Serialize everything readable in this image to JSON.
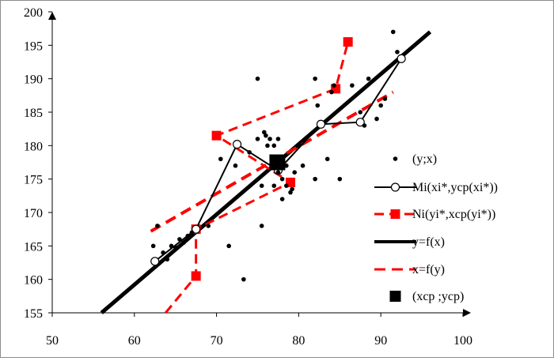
{
  "chart_data": {
    "type": "scatter",
    "xlim": [
      50,
      100
    ],
    "ylim": [
      155,
      200
    ],
    "x_ticks": [
      "50",
      "60",
      "70",
      "80",
      "90",
      "100"
    ],
    "y_ticks": [
      "155",
      "160",
      "165",
      "170",
      "175",
      "180",
      "185",
      "190",
      "195",
      "200"
    ],
    "grid": false,
    "legend_position": "right",
    "series": [
      {
        "name": "(y;x)",
        "kind": "scatter",
        "color": "#000000",
        "points": [
          [
            62.3,
            165
          ],
          [
            62.8,
            168
          ],
          [
            63.5,
            164
          ],
          [
            64,
            163
          ],
          [
            64.5,
            165
          ],
          [
            65,
            164.8
          ],
          [
            65.5,
            166
          ],
          [
            66,
            165.5
          ],
          [
            66.5,
            166.5
          ],
          [
            67,
            167
          ],
          [
            69,
            168
          ],
          [
            70.5,
            178
          ],
          [
            71.5,
            165
          ],
          [
            72.3,
            177
          ],
          [
            73.3,
            160
          ],
          [
            74,
            179
          ],
          [
            75,
            190
          ],
          [
            75,
            181
          ],
          [
            75.5,
            174
          ],
          [
            75.5,
            168
          ],
          [
            75.8,
            182
          ],
          [
            76,
            181.5
          ],
          [
            76.2,
            180
          ],
          [
            76.5,
            181
          ],
          [
            77,
            174
          ],
          [
            77,
            180
          ],
          [
            77.5,
            176
          ],
          [
            77.5,
            181
          ],
          [
            78,
            175
          ],
          [
            78,
            172
          ],
          [
            78.5,
            174
          ],
          [
            78.5,
            177
          ],
          [
            79,
            173
          ],
          [
            79.2,
            173.5
          ],
          [
            79.5,
            176
          ],
          [
            80,
            180
          ],
          [
            80.5,
            177
          ],
          [
            82,
            190
          ],
          [
            82,
            175
          ],
          [
            82.3,
            186
          ],
          [
            83.5,
            178
          ],
          [
            84,
            188
          ],
          [
            84.3,
            189
          ],
          [
            85,
            175
          ],
          [
            86.5,
            189
          ],
          [
            87.5,
            185
          ],
          [
            88,
            183
          ],
          [
            88.5,
            190
          ],
          [
            89.5,
            184
          ],
          [
            90,
            186
          ],
          [
            90.5,
            187
          ],
          [
            91.5,
            197
          ],
          [
            92,
            194
          ]
        ]
      },
      {
        "name": "Mi(xi*,ycp(xi*))",
        "kind": "line-markers",
        "color": "#000000",
        "points": [
          [
            62.5,
            162.7
          ],
          [
            67.5,
            167.5
          ],
          [
            72.5,
            180.2
          ],
          [
            77.5,
            176.3
          ],
          [
            82.7,
            183.2
          ],
          [
            87.5,
            183.5
          ],
          [
            92.5,
            193
          ]
        ]
      },
      {
        "name": "Ni(yi*,xcp(yi*))",
        "kind": "dashed-markers",
        "color": "#ff0000",
        "points": [
          [
            63.8,
            155
          ],
          [
            67.5,
            160.5
          ],
          [
            67.5,
            167.5
          ],
          [
            79,
            174.5
          ],
          [
            70,
            181.5
          ],
          [
            84.5,
            188.5
          ],
          [
            86,
            195.5
          ]
        ]
      },
      {
        "name": "y=f(x)",
        "kind": "line",
        "color": "#000000",
        "points": [
          [
            56,
            155
          ],
          [
            96,
            197
          ]
        ]
      },
      {
        "name": "x=f(y)",
        "kind": "dashed-line",
        "color": "#ff0000",
        "points": [
          [
            62,
            167.2
          ],
          [
            91.5,
            188
          ]
        ]
      },
      {
        "name": "(xcp ;ycp)",
        "kind": "mean-point",
        "color": "#000000",
        "points": [
          [
            77.4,
            177.5
          ]
        ]
      }
    ]
  }
}
